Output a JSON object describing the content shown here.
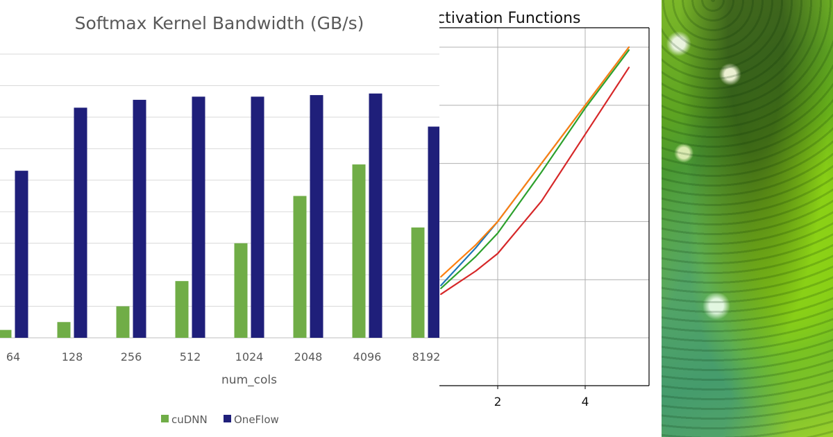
{
  "chart_data": [
    {
      "type": "bar",
      "title": "Softmax Kernel Bandwidth (GB/s)",
      "xlabel": "num_cols",
      "ylabel": "",
      "categories": [
        "64",
        "128",
        "256",
        "512",
        "1024",
        "2048",
        "4096",
        "8192"
      ],
      "series": [
        {
          "name": "cuDNN",
          "color": "#70ad47",
          "values": [
            2.5,
            5,
            10,
            18,
            30,
            45,
            55,
            35
          ]
        },
        {
          "name": "OneFlow",
          "color": "#1f1f7a",
          "values": [
            53,
            73,
            75.5,
            76.5,
            76.5,
            77,
            77.5,
            67
          ]
        }
      ],
      "ylim": [
        0,
        90
      ],
      "grid": true,
      "legend": "bottom"
    },
    {
      "type": "line",
      "title": "ctivation Functions",
      "xlim": [
        0.7,
        5.2
      ],
      "ylim": [
        -0.5,
        5.2
      ],
      "xticks": [
        2,
        4
      ],
      "grid": true,
      "series": [
        {
          "color": "#1f77b4",
          "x": [
            0.7,
            1.5,
            2.0,
            3.0,
            4.0,
            5.0
          ],
          "y": [
            0.9,
            1.55,
            2.0,
            3.0,
            4.0,
            5.0
          ]
        },
        {
          "color": "#ff7f0e",
          "x": [
            0.7,
            1.5,
            2.0,
            3.0,
            4.0,
            5.0
          ],
          "y": [
            1.05,
            1.6,
            2.0,
            3.0,
            4.0,
            5.0
          ]
        },
        {
          "color": "#2ca02c",
          "x": [
            0.7,
            1.5,
            2.0,
            3.0,
            4.0,
            5.0
          ],
          "y": [
            0.85,
            1.4,
            1.8,
            2.85,
            3.95,
            4.95
          ]
        },
        {
          "color": "#d62728",
          "x": [
            0.7,
            1.5,
            2.0,
            3.0,
            4.0,
            5.0
          ],
          "y": [
            0.75,
            1.15,
            1.45,
            2.35,
            3.5,
            4.65
          ]
        }
      ]
    }
  ]
}
